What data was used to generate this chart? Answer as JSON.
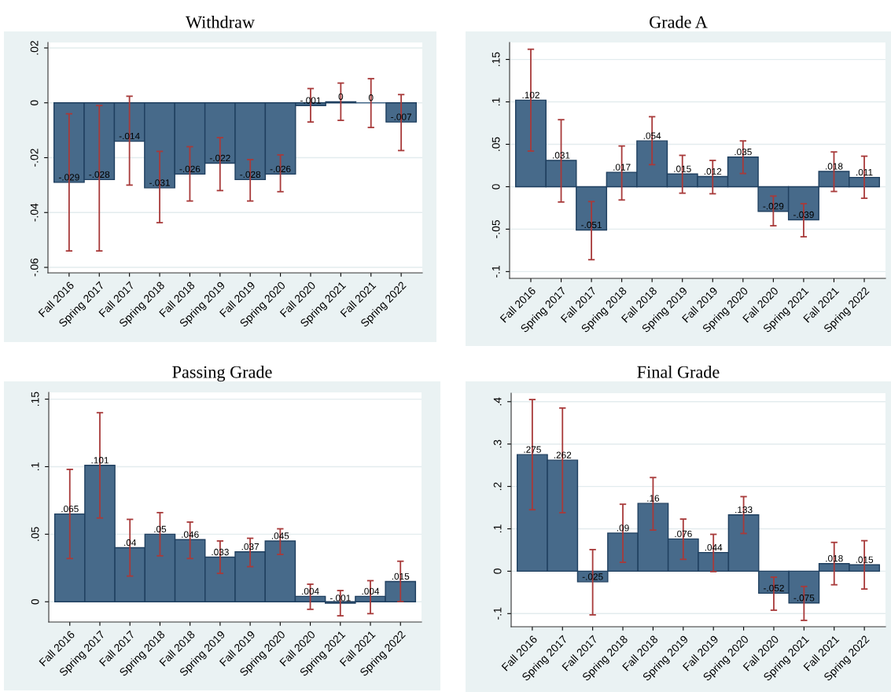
{
  "chart_data": [
    {
      "type": "bar",
      "title": "Withdraw",
      "categories": [
        "Fall 2016",
        "Spring 2017",
        "Fall 2017",
        "Spring 2018",
        "Fall 2018",
        "Spring 2019",
        "Fall 2019",
        "Spring 2020",
        "Fall 2020",
        "Spring 2021",
        "Fall 2021",
        "Spring 2022"
      ],
      "color": "#476a8a",
      "values": [
        -0.029,
        -0.028,
        -0.014,
        -0.031,
        -0.026,
        -0.022,
        -0.028,
        -0.026,
        -0.001,
        0.0004,
        0,
        -0.007
      ],
      "value_labels": [
        "-.029",
        "-.028",
        "-.014",
        "-.031",
        "-.026",
        "-.022",
        "-.028",
        "-.026",
        "-.001",
        "0",
        "0",
        "-.007"
      ],
      "errors": [
        [
          -0.054,
          -0.004
        ],
        [
          -0.054,
          -0.001
        ],
        [
          -0.03,
          0.0024
        ],
        [
          -0.0437,
          -0.0177
        ],
        [
          -0.0358,
          -0.016
        ],
        [
          -0.032,
          -0.0127
        ],
        [
          -0.0358,
          -0.0207
        ],
        [
          -0.0324,
          -0.019
        ],
        [
          -0.007,
          0.0052
        ],
        [
          -0.0064,
          0.0072
        ],
        [
          -0.009,
          0.0088
        ],
        [
          -0.0174,
          0.003
        ]
      ],
      "ylim": [
        -0.062,
        0.022
      ],
      "yticks": [
        {
          "value": -0.06,
          "label": "-.06"
        },
        {
          "value": -0.04,
          "label": "-.04"
        },
        {
          "value": -0.02,
          "label": "-.02"
        },
        0,
        {
          "value": 0.02,
          "label": ".02"
        }
      ],
      "grid": "y"
    },
    {
      "type": "bar",
      "title": "Grade A",
      "categories": [
        "Fall 2016",
        "Spring 2017",
        "Fall 2017",
        "Spring 2018",
        "Fall 2018",
        "Spring 2019",
        "Fall 2019",
        "Spring 2020",
        "Fall 2020",
        "Spring 2021",
        "Fall 2021",
        "Spring 2022"
      ],
      "color": "#476a8a",
      "values": [
        0.102,
        0.031,
        -0.051,
        0.017,
        0.054,
        0.015,
        0.012,
        0.035,
        -0.029,
        -0.039,
        0.018,
        0.011
      ],
      "value_labels": [
        ".102",
        ".031",
        "-.051",
        ".017",
        ".054",
        ".015",
        ".012",
        ".035",
        "-.029",
        "-.039",
        ".018",
        ".011"
      ],
      "errors": [
        [
          0.042,
          0.162
        ],
        [
          -0.018,
          0.079
        ],
        [
          -0.086,
          -0.0175
        ],
        [
          -0.0156,
          0.048
        ],
        [
          0.026,
          0.0825
        ],
        [
          -0.0076,
          0.037
        ],
        [
          -0.0083,
          0.031
        ],
        [
          0.0156,
          0.054
        ],
        [
          -0.046,
          -0.011
        ],
        [
          -0.059,
          -0.02
        ],
        [
          -0.0056,
          0.041
        ],
        [
          -0.0136,
          0.036
        ]
      ],
      "ylim": [
        -0.108,
        0.17
      ],
      "yticks": [
        {
          "value": -0.1,
          "label": "-.1"
        },
        {
          "value": -0.05,
          "label": "-.05"
        },
        0,
        {
          "value": 0.05,
          "label": ".05"
        },
        {
          "value": 0.1,
          "label": ".1"
        },
        {
          "value": 0.15,
          "label": ".15"
        }
      ],
      "grid": "y"
    },
    {
      "type": "bar",
      "title": "Passing Grade",
      "categories": [
        "Fall 2016",
        "Spring 2017",
        "Fall 2017",
        "Spring 2018",
        "Fall 2018",
        "Spring 2019",
        "Fall 2019",
        "Spring 2020",
        "Fall 2020",
        "Spring 2021",
        "Fall 2021",
        "Spring 2022"
      ],
      "color": "#476a8a",
      "values": [
        0.065,
        0.101,
        0.04,
        0.05,
        0.046,
        0.033,
        0.037,
        0.045,
        0.004,
        -0.001,
        0.004,
        0.015
      ],
      "value_labels": [
        ".065",
        ".101",
        ".04",
        ".05",
        ".046",
        ".033",
        ".037",
        ".045",
        ".004",
        "-.001",
        ".004",
        ".015"
      ],
      "errors": [
        [
          0.032,
          0.098
        ],
        [
          0.062,
          0.14
        ],
        [
          0.019,
          0.061
        ],
        [
          0.034,
          0.066
        ],
        [
          0.032,
          0.059
        ],
        [
          0.021,
          0.045
        ],
        [
          0.026,
          0.047
        ],
        [
          0.035,
          0.054
        ],
        [
          -0.0056,
          0.013
        ],
        [
          -0.0104,
          0.0083
        ],
        [
          -0.0088,
          0.0156
        ],
        [
          0.0002,
          0.03
        ]
      ],
      "ylim": [
        -0.015,
        0.155
      ],
      "yticks": [
        0,
        {
          "value": 0.05,
          "label": ".05"
        },
        {
          "value": 0.1,
          "label": ".1"
        },
        {
          "value": 0.15,
          "label": ".15"
        }
      ],
      "grid": "y"
    },
    {
      "type": "bar",
      "title": "Final Grade",
      "categories": [
        "Fall 2016",
        "Spring 2017",
        "Fall 2017",
        "Spring 2018",
        "Fall 2018",
        "Spring 2019",
        "Fall 2019",
        "Spring 2020",
        "Fall 2020",
        "Spring 2021",
        "Fall 2021",
        "Spring 2022"
      ],
      "color": "#476a8a",
      "values": [
        0.275,
        0.262,
        -0.025,
        0.09,
        0.16,
        0.076,
        0.044,
        0.133,
        -0.052,
        -0.075,
        0.018,
        0.015
      ],
      "value_labels": [
        ".275",
        ".262",
        "-.025",
        ".09",
        ".16",
        ".076",
        ".044",
        ".133",
        "-.052",
        "-.075",
        ".018",
        ".015"
      ],
      "errors": [
        [
          0.145,
          0.405
        ],
        [
          0.138,
          0.385
        ],
        [
          -0.103,
          0.051
        ],
        [
          0.021,
          0.158
        ],
        [
          0.097,
          0.221
        ],
        [
          0.028,
          0.123
        ],
        [
          -0.001,
          0.087
        ],
        [
          0.089,
          0.176
        ],
        [
          -0.092,
          -0.014
        ],
        [
          -0.116,
          -0.036
        ],
        [
          -0.032,
          0.068
        ],
        [
          -0.042,
          0.072
        ]
      ],
      "ylim": [
        -0.131,
        0.42
      ],
      "yticks": [
        {
          "value": -0.1,
          "label": "-.1"
        },
        0,
        {
          "value": 0.1,
          "label": ".1"
        },
        {
          "value": 0.2,
          "label": ".2"
        },
        {
          "value": 0.3,
          "label": ".3"
        },
        {
          "value": 0.4,
          "label": ".4"
        }
      ],
      "grid": "y"
    }
  ]
}
